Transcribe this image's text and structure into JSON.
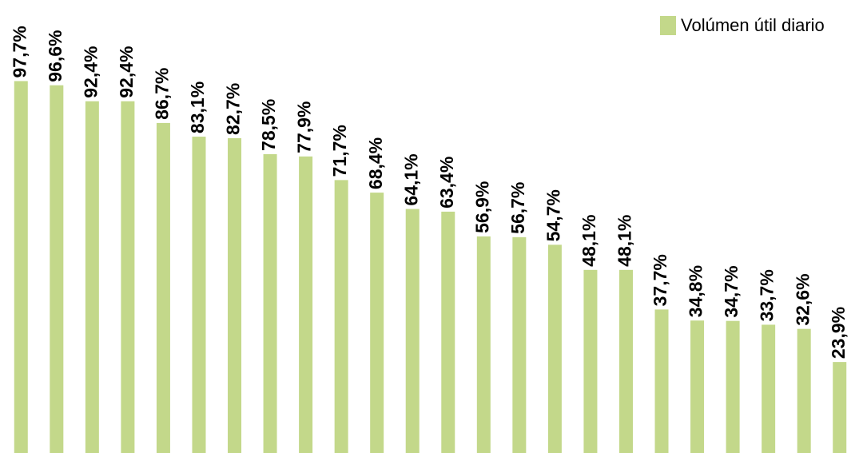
{
  "chart_data": {
    "type": "bar",
    "categories": [
      null,
      null,
      null,
      null,
      null,
      null,
      null,
      null,
      null,
      null,
      null,
      null,
      null,
      null,
      null,
      null,
      null,
      null,
      null,
      null,
      null,
      null,
      null,
      null
    ],
    "series": [
      {
        "name": "Volúmen útil diario",
        "color": "#c3d88a",
        "values": [
          97.7,
          96.6,
          92.4,
          92.4,
          86.7,
          83.1,
          82.7,
          78.5,
          77.9,
          71.7,
          68.4,
          64.1,
          63.4,
          56.9,
          56.7,
          54.7,
          48.1,
          48.1,
          37.7,
          34.8,
          34.7,
          33.7,
          32.6,
          23.9
        ],
        "value_labels": [
          "97,7%",
          "96,6%",
          "92,4%",
          "92,4%",
          "86,7%",
          "83,1%",
          "82,7%",
          "78,5%",
          "77,9%",
          "71,7%",
          "68,4%",
          "64,1%",
          "63,4%",
          "56,9%",
          "56,7%",
          "54,7%",
          "48,1%",
          "48,1%",
          "37,7%",
          "34,8%",
          "34,7%",
          "33,7%",
          "32,6%",
          "23,9%"
        ]
      }
    ],
    "ylim": [
      0,
      119
    ],
    "legend": "top-right"
  }
}
